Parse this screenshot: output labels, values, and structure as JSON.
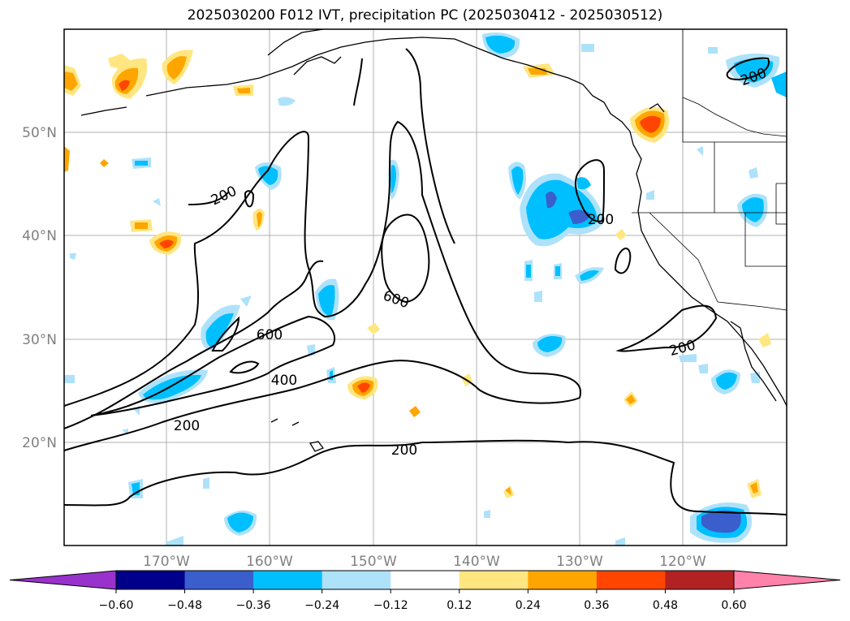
{
  "title": "2025030200 F012 IVT, precipitation PC (2025030412 - 2025030512)",
  "map": {
    "lat_labels": [
      "50°N",
      "40°N",
      "30°N",
      "20°N"
    ],
    "lon_labels": [
      "170°W",
      "160°W",
      "150°W",
      "140°W",
      "130°W",
      "120°W"
    ],
    "contour_labels": [
      "200",
      "200",
      "200",
      "200",
      "200",
      "200",
      "600",
      "600",
      "400"
    ]
  },
  "colorbar": {
    "ticks": [
      "−0.60",
      "−0.48",
      "−0.36",
      "−0.24",
      "−0.12",
      "0.12",
      "0.24",
      "0.36",
      "0.48",
      "0.60"
    ],
    "colors": [
      "#9932cc",
      "#00008b",
      "#3a5fcd",
      "#00bfff",
      "#aee2fa",
      "#ffffff",
      "#ffe680",
      "#ffa500",
      "#ff4500",
      "#b22222",
      "#ff82ab"
    ]
  }
}
